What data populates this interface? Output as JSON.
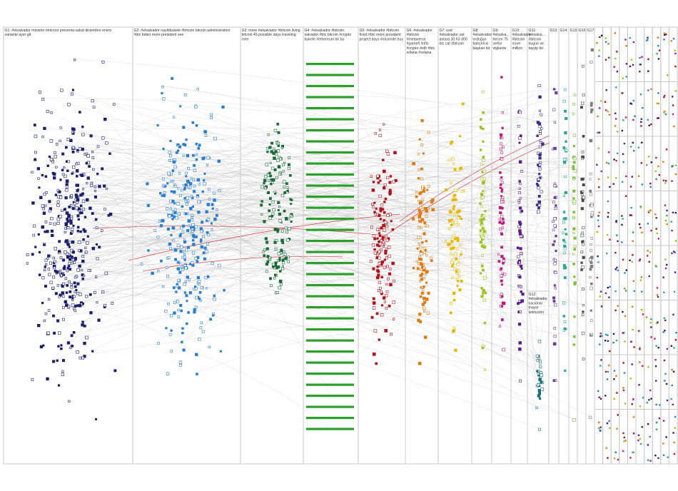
{
  "groups": [
    {
      "id": "G1",
      "label": "G1: #elsalvador ministro ómicron presenta salud diciembre enero",
      "label2": "variante ayer git",
      "color": "#1c1f6b"
    },
    {
      "id": "G2",
      "label": "G2: #elsalvador nayibbukele #bitcoin bitcoin administration",
      "label2": "#btc biden more president see",
      "color": "#2b7fd0"
    },
    {
      "id": "G3",
      "label": "G3: more #elsalvador #bitcoin living",
      "label2": "bitcoin 45 possible days traveling",
      "label3": "over",
      "color": "#1a6b3a"
    },
    {
      "id": "G4",
      "label": "G4: #elsalvador #bitcoin",
      "label2": "salvador #btc bitcoin #crypto",
      "label3": "bukele #ethereum bir bu",
      "color": "#2aa02a"
    },
    {
      "id": "G5",
      "label": "G5: #elsalvador #bitcoin",
      "label2": "fixed #btc more president",
      "label3": "project days #elcomite buy",
      "color": "#b3121a"
    },
    {
      "id": "G6",
      "label": "G6: #elsalvador",
      "label2": "#bitcoin",
      "label3": "#metaverse",
      "label4": "#gamefi #nfts",
      "label5": "#crypto #eth #btc",
      "label6": "solana #solana",
      "color": "#e07b12"
    },
    {
      "id": "G7",
      "label": "G7: usd",
      "label2": "#elsalvador sat",
      "label3": "antara 30 63 300",
      "label4": "btc cat #bitcoin",
      "color": "#e6b800"
    },
    {
      "id": "G8",
      "label": "G8:",
      "label2": "#elsalvador",
      "label3": "erdoğan",
      "label4": "bahçeli ki",
      "label5": "başkan bir",
      "color": "#9ec41c"
    },
    {
      "id": "G9",
      "label": "G9:",
      "label2": "#elsalva...",
      "label3": "hecen 75",
      "label4": "señor",
      "label5": "vigilante",
      "color": "#c21a7a"
    },
    {
      "id": "G10",
      "label": "G10:",
      "label2": "#elsalvador",
      "label3": "#bitcoin",
      "label4": "more",
      "label5": "million",
      "color": "#5a1e8c"
    },
    {
      "id": "G11",
      "label": "G11:",
      "label2": "#elsalva...",
      "label3": "#bitcoin",
      "label4": "bugün ve",
      "label5": "tayyip bir",
      "color": "#3a2d8f"
    },
    {
      "id": "G12",
      "label": "G12:",
      "label2": "#elsalvador",
      "label3": "nacional",
      "label4": "mayor",
      "label5": "selección",
      "color": "#1b6f78"
    },
    {
      "id": "G13",
      "label": "G13:",
      "color": "#6a3aa0"
    },
    {
      "id": "G14",
      "label": "G14:",
      "color": "#2aa890"
    },
    {
      "id": "G15",
      "label": "G15:",
      "color": "#7cc23a"
    },
    {
      "id": "G16",
      "label": "G16:",
      "color": "#4a4a4a"
    },
    {
      "id": "G17",
      "label": "G17:",
      "color": "#808080"
    }
  ]
}
